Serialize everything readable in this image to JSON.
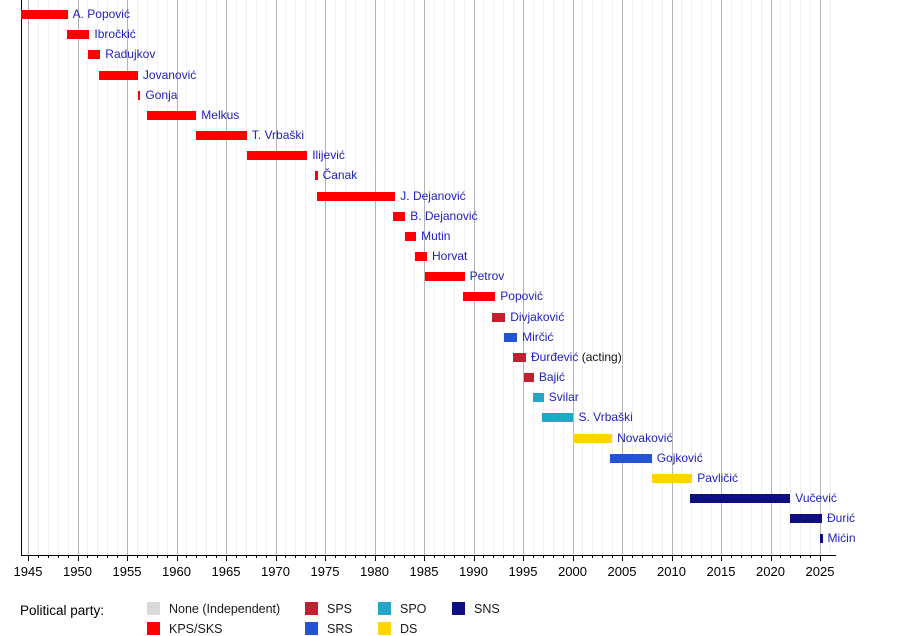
{
  "chart_data": {
    "type": "bar",
    "variant": "timeline",
    "title": "",
    "xlabel": "",
    "ylabel": "",
    "x_axis": {
      "range": [
        1944.3,
        2026.5
      ],
      "tick_years": [
        1945,
        1950,
        1955,
        1960,
        1965,
        1970,
        1975,
        1980,
        1985,
        1990,
        1995,
        2000,
        2005,
        2010,
        2015,
        2020,
        2025
      ],
      "minor_tick_step": 1,
      "major_tick_step": 5,
      "grid": true
    },
    "parties": {
      "none": {
        "label": "None (Independent)",
        "color": "#D9D9D9"
      },
      "kps_sks": {
        "label": "KPS/SKS",
        "color": "#FF0000"
      },
      "sps": {
        "label": "SPS",
        "color": "#C2202E"
      },
      "srs": {
        "label": "SRS",
        "color": "#2254D3"
      },
      "spo": {
        "label": "SPO",
        "color": "#25A6C6"
      },
      "ds": {
        "label": "DS",
        "color": "#FFD400"
      },
      "sns": {
        "label": "SNS",
        "color": "#0F0F82"
      }
    },
    "mayors": [
      {
        "name": "A. Popović",
        "start": 1944.3,
        "end": 1949.0,
        "party": "kps_sks"
      },
      {
        "name": "Ibročkić",
        "start": 1948.9,
        "end": 1951.2,
        "party": "kps_sks"
      },
      {
        "name": "Radujkov",
        "start": 1951.1,
        "end": 1952.3,
        "party": "kps_sks"
      },
      {
        "name": "Jovanović",
        "start": 1952.2,
        "end": 1956.1,
        "party": "kps_sks"
      },
      {
        "name": "Gonja",
        "start": 1956.1,
        "end": 1956.35,
        "party": "kps_sks"
      },
      {
        "name": "Melkus",
        "start": 1957.0,
        "end": 1962.0,
        "party": "kps_sks"
      },
      {
        "name": "T. Vrbaški",
        "start": 1962.0,
        "end": 1967.1,
        "party": "kps_sks"
      },
      {
        "name": "Ilijević",
        "start": 1967.1,
        "end": 1973.2,
        "party": "kps_sks"
      },
      {
        "name": "Čanak",
        "start": 1974.0,
        "end": 1974.25,
        "party": "kps_sks"
      },
      {
        "name": "J. Dejanović",
        "start": 1974.2,
        "end": 1982.1,
        "party": "kps_sks"
      },
      {
        "name": "B. Dejanović",
        "start": 1981.9,
        "end": 1983.1,
        "party": "kps_sks"
      },
      {
        "name": "Mutin",
        "start": 1983.1,
        "end": 1984.2,
        "party": "kps_sks"
      },
      {
        "name": "Horvat",
        "start": 1984.1,
        "end": 1985.3,
        "party": "kps_sks"
      },
      {
        "name": "Petrov",
        "start": 1985.1,
        "end": 1989.1,
        "party": "kps_sks"
      },
      {
        "name": "Popović",
        "start": 1988.9,
        "end": 1992.2,
        "party": "kps_sks"
      },
      {
        "name": "Divjaković",
        "start": 1991.9,
        "end": 1993.2,
        "party": "sps"
      },
      {
        "name": "Mirčić",
        "start": 1993.1,
        "end": 1994.4,
        "party": "srs"
      },
      {
        "name": "Đurđević",
        "suffix": "(acting)",
        "start": 1994.0,
        "end": 1995.3,
        "party": "sps"
      },
      {
        "name": "Bajić",
        "start": 1995.1,
        "end": 1996.1,
        "party": "sps"
      },
      {
        "name": "Svilar",
        "start": 1996.0,
        "end": 1997.1,
        "party": "spo"
      },
      {
        "name": "S. Vrbaški",
        "start": 1996.9,
        "end": 2000.1,
        "party": "spo"
      },
      {
        "name": "Novaković",
        "start": 2000.0,
        "end": 2004.0,
        "party": "ds"
      },
      {
        "name": "Gojković",
        "start": 2003.8,
        "end": 2008.0,
        "party": "srs"
      },
      {
        "name": "Pavličić",
        "start": 2008.0,
        "end": 2012.1,
        "party": "ds"
      },
      {
        "name": "Vučević",
        "start": 2011.9,
        "end": 2022.0,
        "party": "sns"
      },
      {
        "name": "Đurić",
        "start": 2022.0,
        "end": 2025.2,
        "party": "sns"
      },
      {
        "name": "Mićin",
        "start": 2025.0,
        "end": 2025.25,
        "party": "sns"
      }
    ]
  },
  "legend": {
    "title": "Political party:",
    "items": [
      {
        "party": "none"
      },
      {
        "party": "kps_sks"
      },
      {
        "party": "sps"
      },
      {
        "party": "srs"
      },
      {
        "party": "spo"
      },
      {
        "party": "ds"
      },
      {
        "party": "sns"
      }
    ]
  },
  "colors": {
    "mayor_label_text": "#2121BD",
    "suffix_text": "#111111",
    "axis": "#000000",
    "gridline_minor": "#F0F0F0",
    "gridline_major": "#B3B3B3",
    "background": "#FFFFFF"
  }
}
